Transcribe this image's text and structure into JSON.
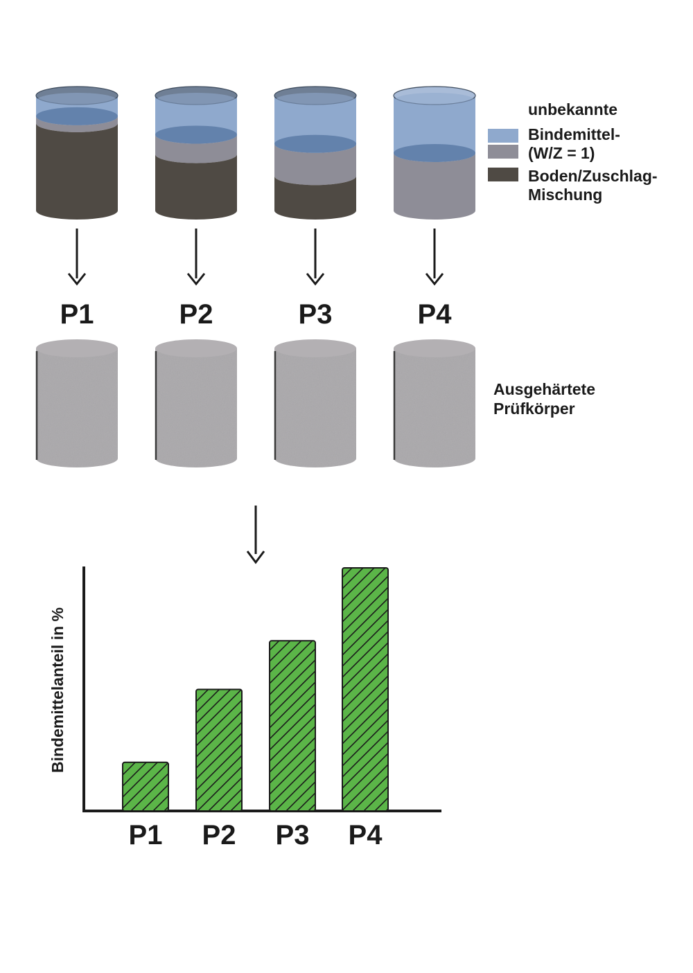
{
  "samples": [
    {
      "label": "P1",
      "liquid_level": 0.06,
      "binder_level": 0.06,
      "solid_level": 0.76
    },
    {
      "label": "P2",
      "liquid_level": 0.16,
      "binder_level": 0.17,
      "solid_level": 0.49
    },
    {
      "label": "P3",
      "liquid_level": 0.28,
      "binder_level": 0.28,
      "solid_level": 0.3
    },
    {
      "label": "P4",
      "liquid_level": 0.5,
      "binder_level": 0.5,
      "solid_level": 0.0
    }
  ],
  "legend": {
    "title": "unbekannte",
    "binder_line1": "Bindemittel-",
    "binder_line2": "(W/Z = 1)",
    "soil_line1": "Boden/Zuschlag-",
    "soil_line2": "Mischung"
  },
  "cured_note": {
    "line1": "Ausgehärtete",
    "line2": "Prüfkörper"
  },
  "colors": {
    "water": "#8fa9cd",
    "water_dark": "#5e7da9",
    "binder": "#8e8d97",
    "soil": "#4f4a44",
    "cured": "#a9a7aa",
    "bar_fill": "#5bb548",
    "arrow": "#1a1a1a"
  },
  "chart_data": {
    "type": "bar",
    "categories": [
      "P1",
      "P2",
      "P3",
      "P4"
    ],
    "values": [
      20,
      50,
      70,
      100
    ],
    "ylabel": "Bindemittelanteil in %",
    "xlabel": "",
    "ylim": [
      0,
      100
    ],
    "hatched": true
  }
}
